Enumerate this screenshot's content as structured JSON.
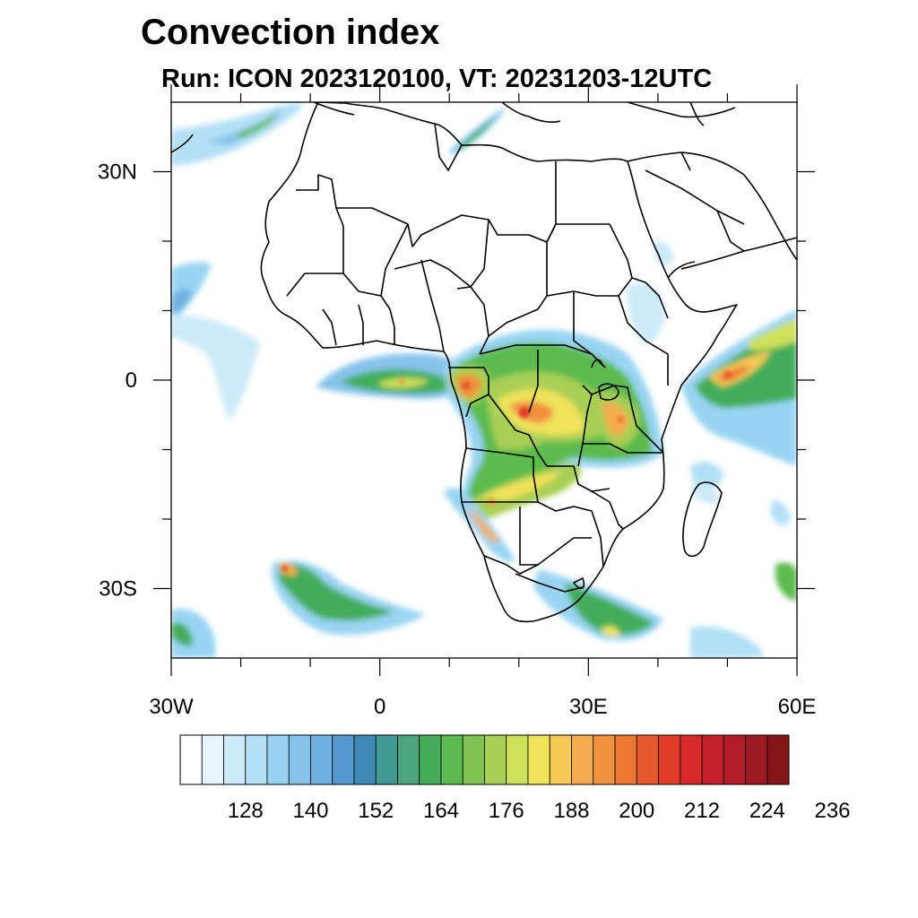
{
  "title": "Convection index",
  "subtitle": "Run: ICON 2023120100,  VT: 20231203-12UTC",
  "map": {
    "region": "Africa",
    "projection": "cylindrical equidistant",
    "lon_range": [
      -30,
      60
    ],
    "lat_range": [
      -40,
      40
    ],
    "lon_ticks": [
      {
        "value": -30,
        "label": "30W"
      },
      {
        "value": 0,
        "label": "0"
      },
      {
        "value": 30,
        "label": "30E"
      },
      {
        "value": 60,
        "label": "60E"
      }
    ],
    "lat_ticks": [
      {
        "value": 30,
        "label": "30N"
      },
      {
        "value": 0,
        "label": "0"
      },
      {
        "value": -30,
        "label": "30S"
      }
    ],
    "minor_lon_ticks": [
      -20,
      -10,
      10,
      20,
      40,
      50
    ],
    "minor_lat_ticks": [
      20,
      10,
      -10,
      -20
    ]
  },
  "colorbar": {
    "labels": [
      "128",
      "140",
      "152",
      "164",
      "176",
      "188",
      "200",
      "212",
      "224",
      "236"
    ],
    "colors": [
      "#ffffff",
      "#e8f5fc",
      "#cdeaf9",
      "#b3e0f6",
      "#98d4f2",
      "#86c3ea",
      "#6fb0e0",
      "#5597cf",
      "#3f8ab4",
      "#3e9a92",
      "#4aa57a",
      "#43ad5a",
      "#5bbb4e",
      "#82c451",
      "#a9cf55",
      "#cde05a",
      "#f0e25a",
      "#f6c955",
      "#f4ad4e",
      "#f09240",
      "#ec7833",
      "#e75a2b",
      "#e23d27",
      "#d82b29",
      "#c4212b",
      "#b11c27",
      "#9c1a22",
      "#851617"
    ]
  }
}
